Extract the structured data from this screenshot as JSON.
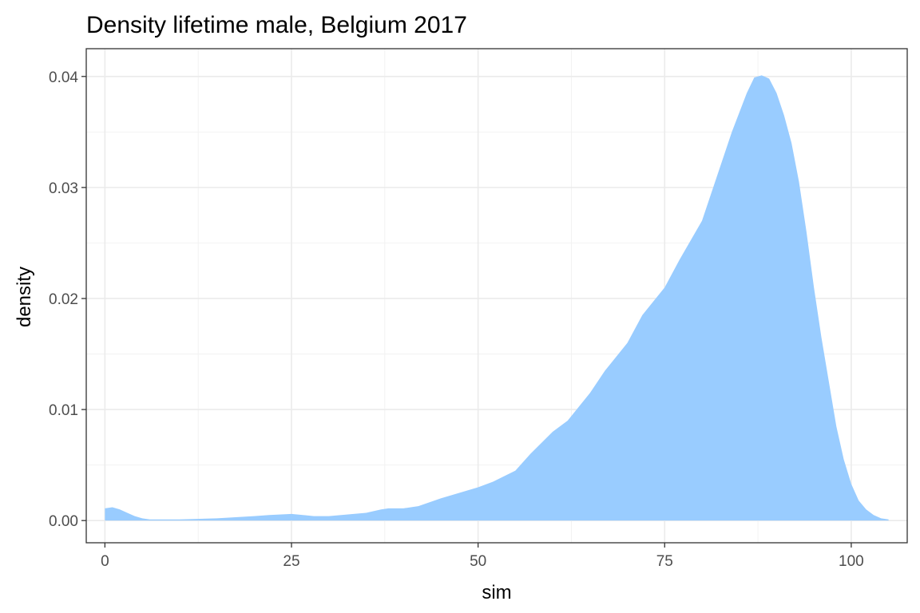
{
  "chart_data": {
    "type": "area",
    "title": "Density lifetime male, Belgium 2017",
    "xlabel": "sim",
    "ylabel": "density",
    "xlim": [
      -2.5,
      107.5
    ],
    "ylim": [
      -0.002,
      0.0425
    ],
    "x_ticks": [
      0,
      25,
      50,
      75,
      100
    ],
    "x_tick_labels": [
      "0",
      "25",
      "50",
      "75",
      "100"
    ],
    "y_ticks": [
      0,
      0.01,
      0.02,
      0.03,
      0.04
    ],
    "y_tick_labels": [
      "0.00",
      "0.01",
      "0.02",
      "0.03",
      "0.04"
    ],
    "grid": true,
    "fill_color": "#99ccff",
    "series": [
      {
        "x": [
          0,
          1,
          2,
          3,
          4,
          5,
          6,
          8,
          10,
          15,
          20,
          22,
          25,
          28,
          30,
          35,
          37,
          38,
          40,
          42,
          45,
          50,
          52,
          55,
          57,
          60,
          62,
          65,
          67,
          70,
          72,
          75,
          77,
          80,
          82,
          84,
          86,
          87,
          88,
          89,
          90,
          91,
          92,
          93,
          94,
          95,
          96,
          97,
          98,
          99,
          100,
          101,
          102,
          103,
          104,
          105
        ],
        "y": [
          0.0011,
          0.0012,
          0.001,
          0.0007,
          0.0004,
          0.0002,
          0.0001,
          0.0001,
          0.0001,
          0.0002,
          0.0004,
          0.0005,
          0.0006,
          0.0004,
          0.0004,
          0.0007,
          0.001,
          0.0011,
          0.0011,
          0.0013,
          0.002,
          0.003,
          0.0035,
          0.0045,
          0.006,
          0.008,
          0.009,
          0.0115,
          0.0135,
          0.016,
          0.0185,
          0.021,
          0.0235,
          0.027,
          0.031,
          0.035,
          0.0385,
          0.0399,
          0.0401,
          0.0398,
          0.0385,
          0.0365,
          0.034,
          0.0305,
          0.026,
          0.021,
          0.0165,
          0.0125,
          0.0085,
          0.0055,
          0.0033,
          0.0018,
          0.001,
          0.0005,
          0.0002,
          0.0001
        ]
      }
    ]
  }
}
